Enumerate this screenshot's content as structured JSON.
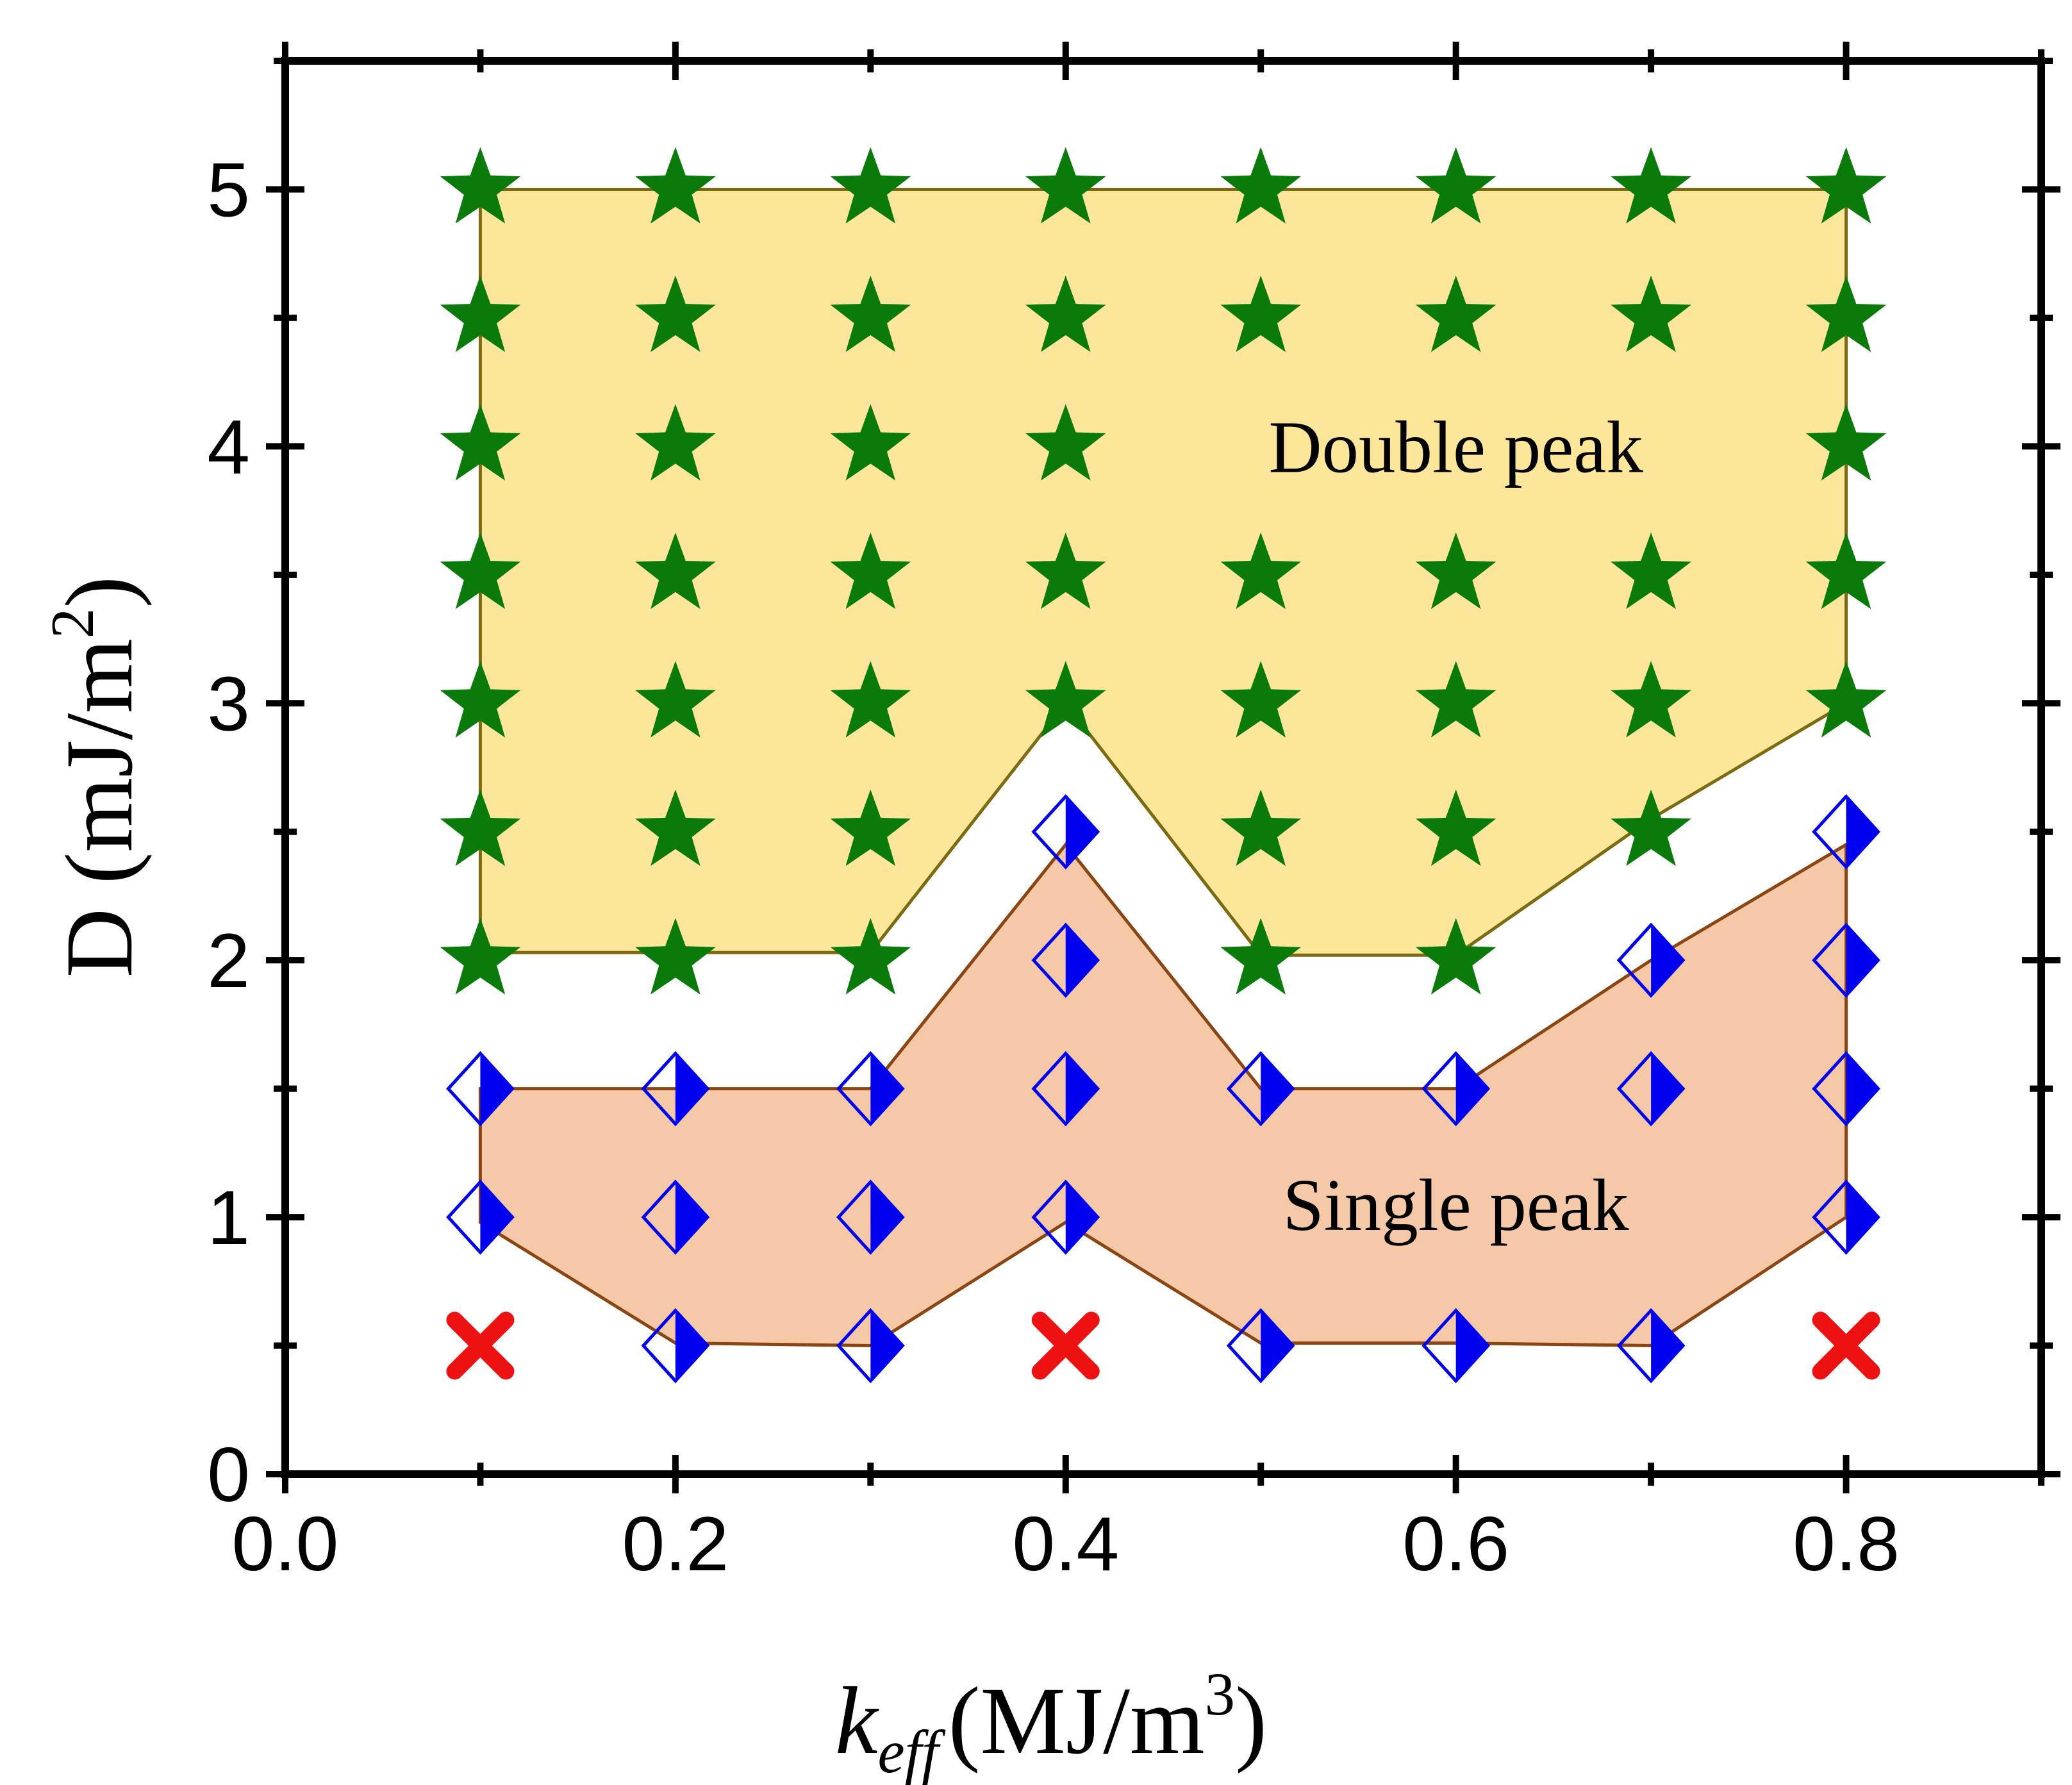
{
  "chart_data": {
    "type": "scatter",
    "xlim": [
      0,
      0.9
    ],
    "ylim": [
      0,
      5.5
    ],
    "xticks": [
      0.0,
      0.2,
      0.4,
      0.6,
      0.8
    ],
    "xtick_labels": [
      "0.0",
      "0.2",
      "0.4",
      "0.6",
      "0.8"
    ],
    "yticks": [
      0,
      1,
      2,
      3,
      4,
      5
    ],
    "ytick_labels": [
      "0",
      "1",
      "2",
      "3",
      "4",
      "5"
    ],
    "xlabel": {
      "main": "k",
      "sub": "eff",
      "unit": "(MJ/m",
      "sup": "3",
      "close": ")"
    },
    "ylabel": {
      "main": "D (mJ/m",
      "sup": "2",
      "close": ")"
    },
    "regions": [
      {
        "name": "Double peak",
        "label": "Double peak",
        "label_at": [
          0.6,
          4.0
        ],
        "fill": "#fce69a",
        "stroke": "#7a6a10",
        "polygon": [
          [
            0.1,
            5
          ],
          [
            0.8,
            5
          ],
          [
            0.8,
            3
          ],
          [
            0.7,
            2.55
          ],
          [
            0.6,
            2.02
          ],
          [
            0.5,
            2.02
          ],
          [
            0.4,
            3
          ],
          [
            0.3,
            2.03
          ],
          [
            0.1,
            2.03
          ]
        ]
      },
      {
        "name": "Single peak",
        "label": "Single peak",
        "label_at": [
          0.6,
          1.05
        ],
        "fill": "#f5c9a8",
        "stroke": "#8b4513",
        "polygon": [
          [
            0.1,
            1.5
          ],
          [
            0.3,
            1.5
          ],
          [
            0.4,
            2.45
          ],
          [
            0.5,
            1.5
          ],
          [
            0.6,
            1.5
          ],
          [
            0.7,
            2.0
          ],
          [
            0.8,
            2.45
          ],
          [
            0.8,
            1.0
          ],
          [
            0.7,
            0.5
          ],
          [
            0.6,
            0.51
          ],
          [
            0.5,
            0.51
          ],
          [
            0.4,
            0.98
          ],
          [
            0.3,
            0.5
          ],
          [
            0.2,
            0.51
          ],
          [
            0.1,
            0.98
          ],
          [
            0.1,
            1.0
          ]
        ]
      }
    ],
    "series": [
      {
        "name": "Double peak",
        "marker": "star",
        "color": "#0a7a0a",
        "points": [
          [
            0.1,
            5
          ],
          [
            0.2,
            5
          ],
          [
            0.3,
            5
          ],
          [
            0.4,
            5
          ],
          [
            0.5,
            5
          ],
          [
            0.6,
            5
          ],
          [
            0.7,
            5
          ],
          [
            0.8,
            5
          ],
          [
            0.1,
            4.5
          ],
          [
            0.2,
            4.5
          ],
          [
            0.3,
            4.5
          ],
          [
            0.4,
            4.5
          ],
          [
            0.5,
            4.5
          ],
          [
            0.6,
            4.5
          ],
          [
            0.7,
            4.5
          ],
          [
            0.8,
            4.5
          ],
          [
            0.1,
            4
          ],
          [
            0.2,
            4
          ],
          [
            0.3,
            4
          ],
          [
            0.4,
            4
          ],
          [
            0.8,
            4
          ],
          [
            0.1,
            3.5
          ],
          [
            0.2,
            3.5
          ],
          [
            0.3,
            3.5
          ],
          [
            0.4,
            3.5
          ],
          [
            0.5,
            3.5
          ],
          [
            0.6,
            3.5
          ],
          [
            0.7,
            3.5
          ],
          [
            0.8,
            3.5
          ],
          [
            0.1,
            3
          ],
          [
            0.2,
            3
          ],
          [
            0.3,
            3
          ],
          [
            0.4,
            3
          ],
          [
            0.5,
            3
          ],
          [
            0.6,
            3
          ],
          [
            0.7,
            3
          ],
          [
            0.8,
            3
          ],
          [
            0.1,
            2.5
          ],
          [
            0.2,
            2.5
          ],
          [
            0.3,
            2.5
          ],
          [
            0.5,
            2.5
          ],
          [
            0.6,
            2.5
          ],
          [
            0.7,
            2.5
          ],
          [
            0.1,
            2
          ],
          [
            0.2,
            2
          ],
          [
            0.3,
            2
          ],
          [
            0.5,
            2
          ],
          [
            0.6,
            2
          ]
        ]
      },
      {
        "name": "Single peak",
        "marker": "half-diamond",
        "color": "#0000ee",
        "points": [
          [
            0.4,
            2.5
          ],
          [
            0.8,
            2.5
          ],
          [
            0.4,
            2
          ],
          [
            0.7,
            2
          ],
          [
            0.8,
            2
          ],
          [
            0.1,
            1.5
          ],
          [
            0.2,
            1.5
          ],
          [
            0.3,
            1.5
          ],
          [
            0.4,
            1.5
          ],
          [
            0.5,
            1.5
          ],
          [
            0.6,
            1.5
          ],
          [
            0.7,
            1.5
          ],
          [
            0.8,
            1.5
          ],
          [
            0.1,
            1
          ],
          [
            0.2,
            1
          ],
          [
            0.3,
            1
          ],
          [
            0.4,
            1
          ],
          [
            0.8,
            1
          ],
          [
            0.2,
            0.5
          ],
          [
            0.3,
            0.5
          ],
          [
            0.5,
            0.5
          ],
          [
            0.6,
            0.5
          ],
          [
            0.7,
            0.5
          ]
        ]
      },
      {
        "name": "None",
        "marker": "cross",
        "color": "#ee1111",
        "points": [
          [
            0.1,
            0.5
          ],
          [
            0.4,
            0.5
          ],
          [
            0.8,
            0.5
          ]
        ]
      }
    ]
  }
}
